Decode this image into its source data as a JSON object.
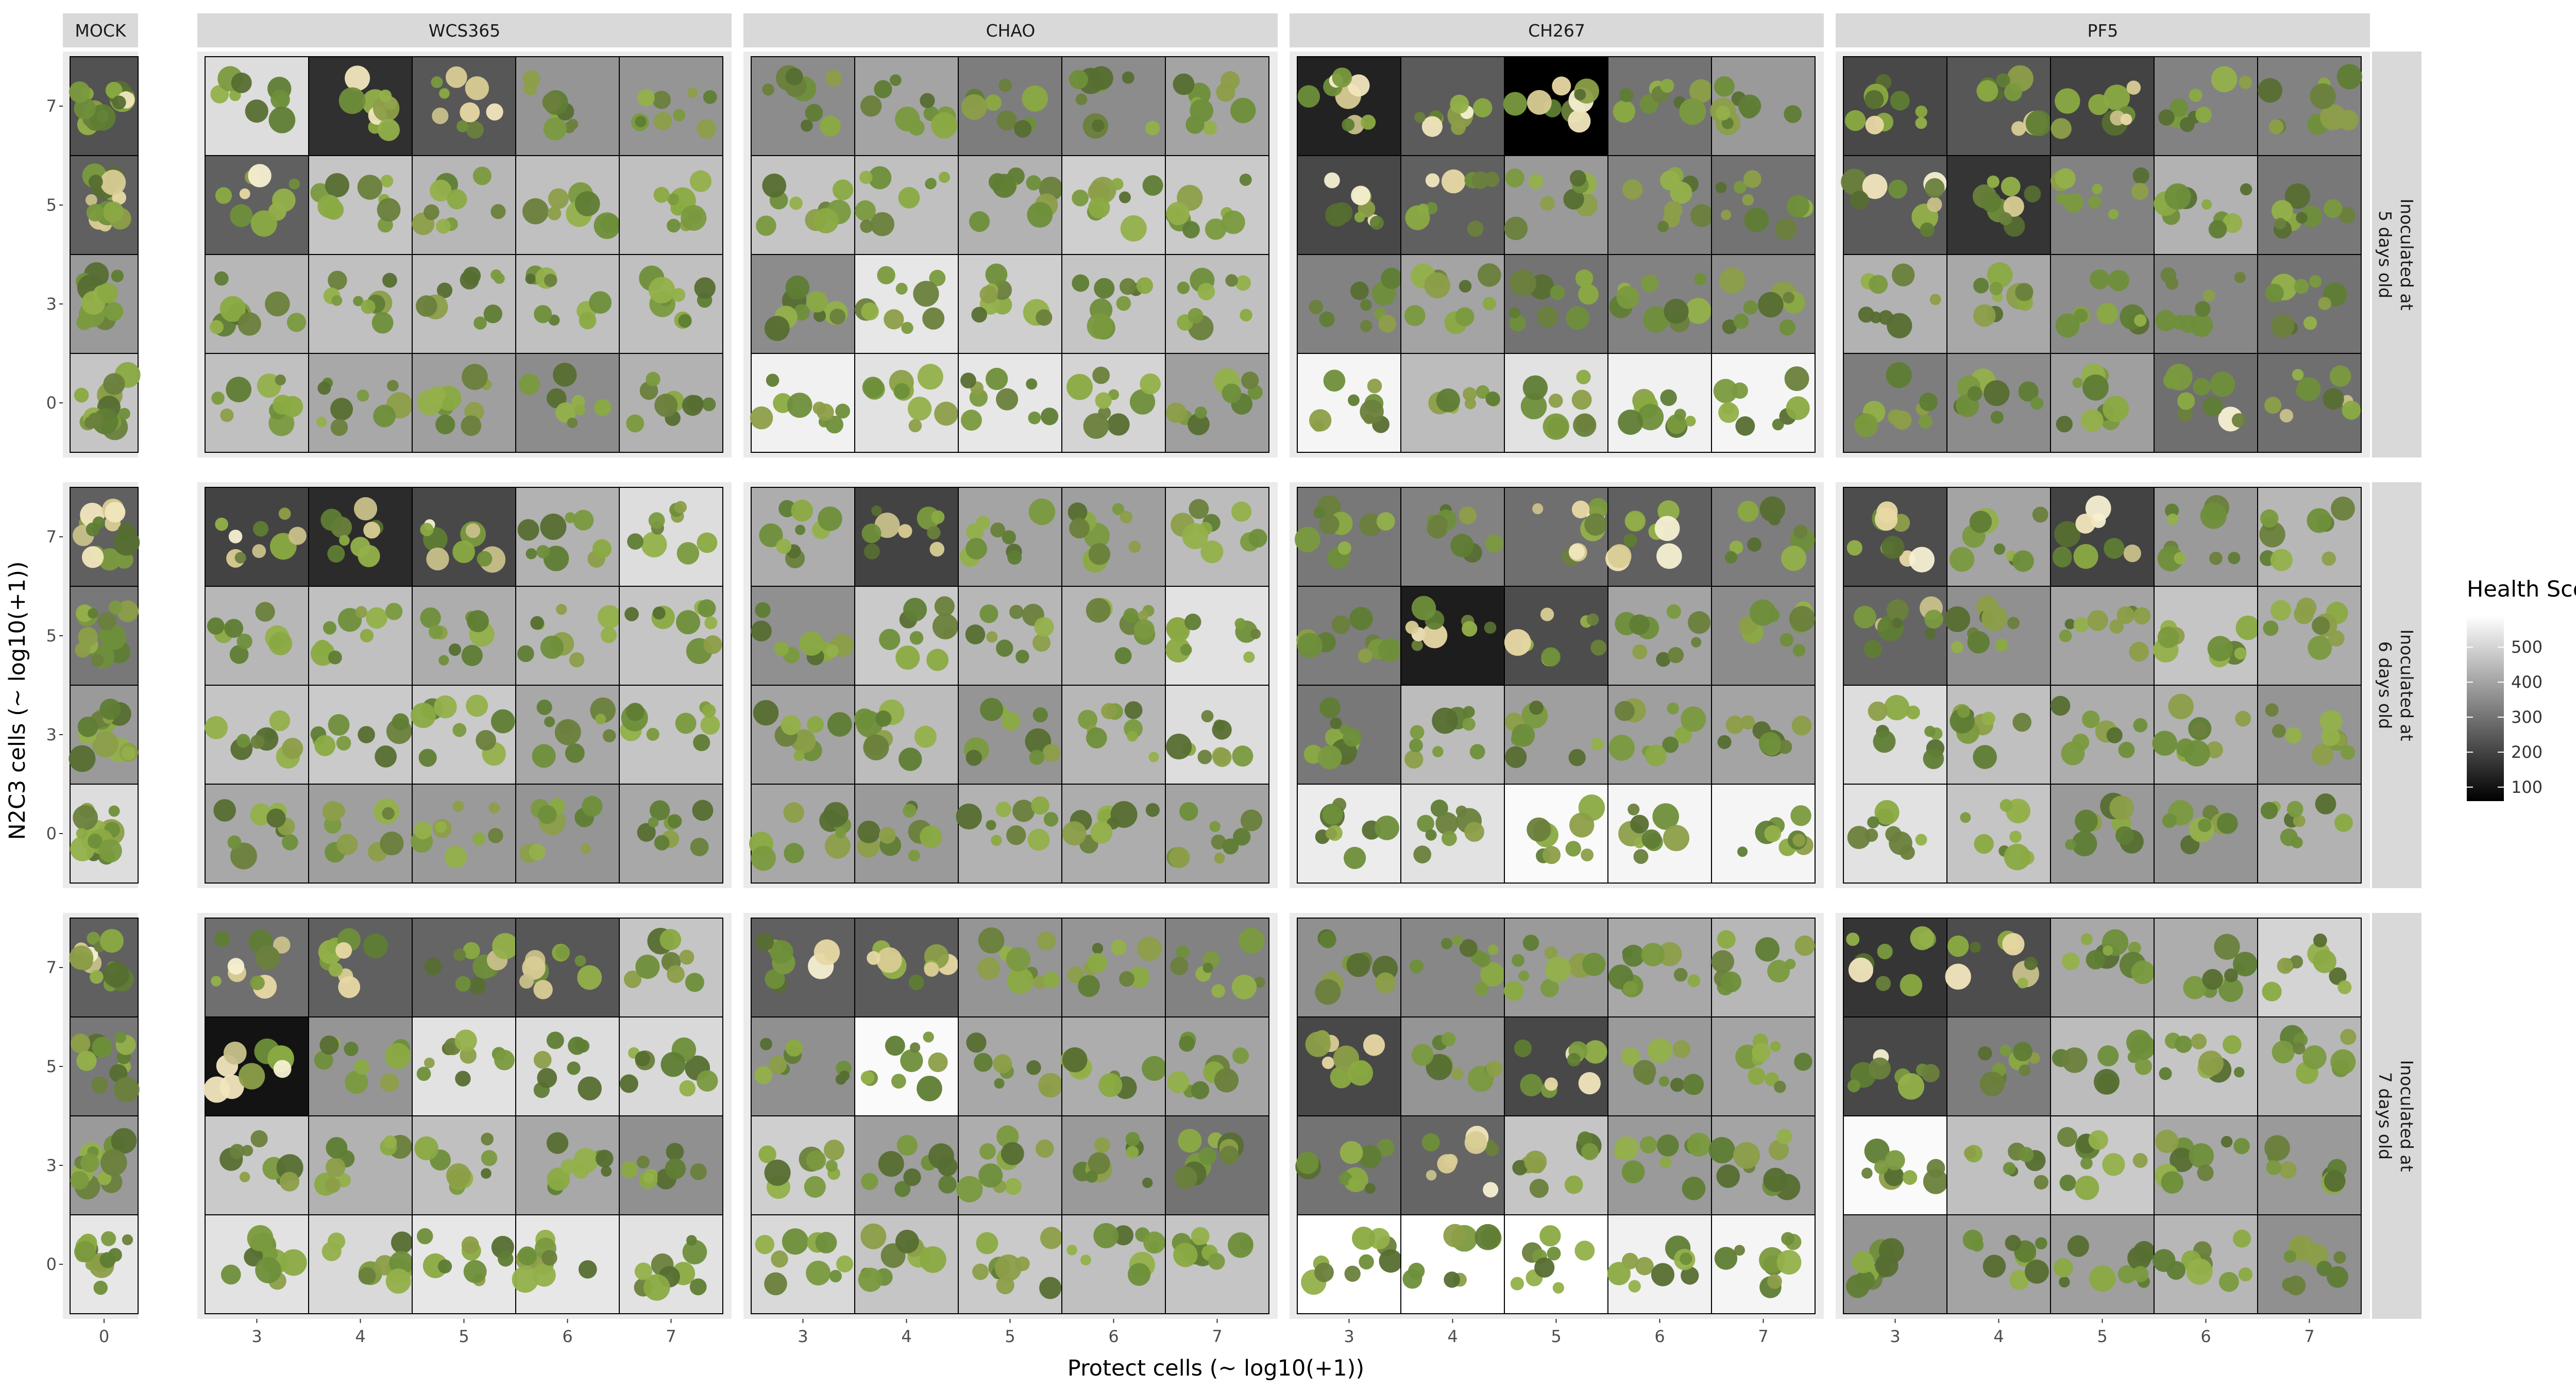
{
  "chart_data": {
    "type": "heatmap",
    "xlabel": "Protect cells (~ log10(+1))",
    "ylabel": "N2C3 cells (~ log10(+1))",
    "legend": {
      "title": "Health Score",
      "ticks": [
        100,
        200,
        300,
        400,
        500
      ],
      "range": [
        60,
        590
      ],
      "low_color": "#000000",
      "high_color": "#ffffff",
      "placement": "right"
    },
    "y_categories": [
      "0",
      "3",
      "5",
      "7"
    ],
    "columns": [
      {
        "name": "MOCK",
        "x_categories": [
          "0"
        ]
      },
      {
        "name": "WCS365",
        "x_categories": [
          "3",
          "4",
          "5",
          "6",
          "7"
        ]
      },
      {
        "name": "CHAO",
        "x_categories": [
          "3",
          "4",
          "5",
          "6",
          "7"
        ]
      },
      {
        "name": "CH267",
        "x_categories": [
          "3",
          "4",
          "5",
          "6",
          "7"
        ]
      },
      {
        "name": "PF5",
        "x_categories": [
          "3",
          "4",
          "5",
          "6",
          "7"
        ]
      }
    ],
    "rows": [
      {
        "name": "Inoculated at 5 days old",
        "label_lines": [
          "Inoculated at",
          "5 days old"
        ]
      },
      {
        "name": "Inoculated at 6 days old",
        "label_lines": [
          "Inoculated at",
          "6 days old"
        ]
      },
      {
        "name": "Inoculated at 7 days old",
        "label_lines": [
          "Inoculated at",
          "7 days old"
        ]
      }
    ],
    "note": "values[row][column] is a grid of health scores, listed top (N2C3=7) to bottom (N2C3=0)",
    "values": [
      [
        [
          [
            230
          ],
          [
            260
          ],
          [
            380
          ],
          [
            470
          ]
        ],
        [
          [
            520,
            160,
            240,
            370,
            370
          ],
          [
            260,
            470,
            440,
            460,
            460
          ],
          [
            440,
            460,
            460,
            460,
            460
          ],
          [
            460,
            410,
            390,
            350,
            430
          ]
        ],
        [
          [
            350,
            400,
            320,
            350,
            400
          ],
          [
            470,
            460,
            430,
            490,
            480
          ],
          [
            350,
            540,
            490,
            470,
            460
          ],
          [
            560,
            530,
            540,
            500,
            390
          ]
        ],
        [
          [
            130,
            250,
            60,
            300,
            380
          ],
          [
            210,
            260,
            380,
            330,
            300
          ],
          [
            330,
            400,
            300,
            330,
            350
          ],
          [
            570,
            450,
            530,
            560,
            570
          ]
        ],
        [
          [
            210,
            240,
            200,
            330,
            330
          ],
          [
            250,
            170,
            330,
            430,
            310
          ],
          [
            430,
            410,
            350,
            340,
            300
          ],
          [
            320,
            350,
            390,
            290,
            290
          ]
        ]
      ],
      [
        [
          [
            260
          ],
          [
            310
          ],
          [
            380
          ],
          [
            520
          ]
        ],
        [
          [
            200,
            150,
            210,
            430,
            520
          ],
          [
            440,
            460,
            420,
            440,
            470
          ],
          [
            470,
            480,
            480,
            410,
            470
          ],
          [
            410,
            390,
            380,
            370,
            410
          ]
        ],
        [
          [
            420,
            200,
            400,
            390,
            450
          ],
          [
            360,
            480,
            440,
            440,
            530
          ],
          [
            400,
            450,
            370,
            440,
            520
          ],
          [
            410,
            380,
            430,
            420,
            400
          ]
        ],
        [
          [
            310,
            330,
            290,
            260,
            320
          ],
          [
            320,
            120,
            220,
            400,
            350
          ],
          [
            310,
            450,
            390,
            390,
            400
          ],
          [
            550,
            530,
            580,
            570,
            570
          ]
        ],
        [
          [
            220,
            400,
            200,
            380,
            440
          ],
          [
            270,
            360,
            400,
            470,
            420
          ],
          [
            520,
            460,
            420,
            430,
            370
          ],
          [
            530,
            470,
            380,
            370,
            430
          ]
        ]
      ],
      [
        [
          [
            260
          ],
          [
            310
          ],
          [
            380
          ],
          [
            540
          ]
        ],
        [
          [
            290,
            260,
            270,
            240,
            470
          ],
          [
            100,
            370,
            530,
            520,
            510
          ],
          [
            480,
            430,
            460,
            410,
            360
          ],
          [
            530,
            510,
            540,
            540,
            530
          ]
        ],
        [
          [
            260,
            250,
            370,
            370,
            330
          ],
          [
            360,
            580,
            410,
            420,
            400
          ],
          [
            490,
            390,
            420,
            380,
            300
          ],
          [
            510,
            470,
            480,
            460,
            470
          ]
        ],
        [
          [
            360,
            340,
            380,
            410,
            440
          ],
          [
            210,
            370,
            210,
            380,
            400
          ],
          [
            300,
            270,
            470,
            380,
            400
          ],
          [
            590,
            590,
            590,
            560,
            570
          ]
        ],
        [
          [
            170,
            220,
            410,
            420,
            500
          ],
          [
            210,
            320,
            450,
            470,
            440
          ],
          [
            580,
            460,
            480,
            410,
            380
          ],
          [
            370,
            400,
            390,
            440,
            360
          ]
        ]
      ]
    ]
  }
}
